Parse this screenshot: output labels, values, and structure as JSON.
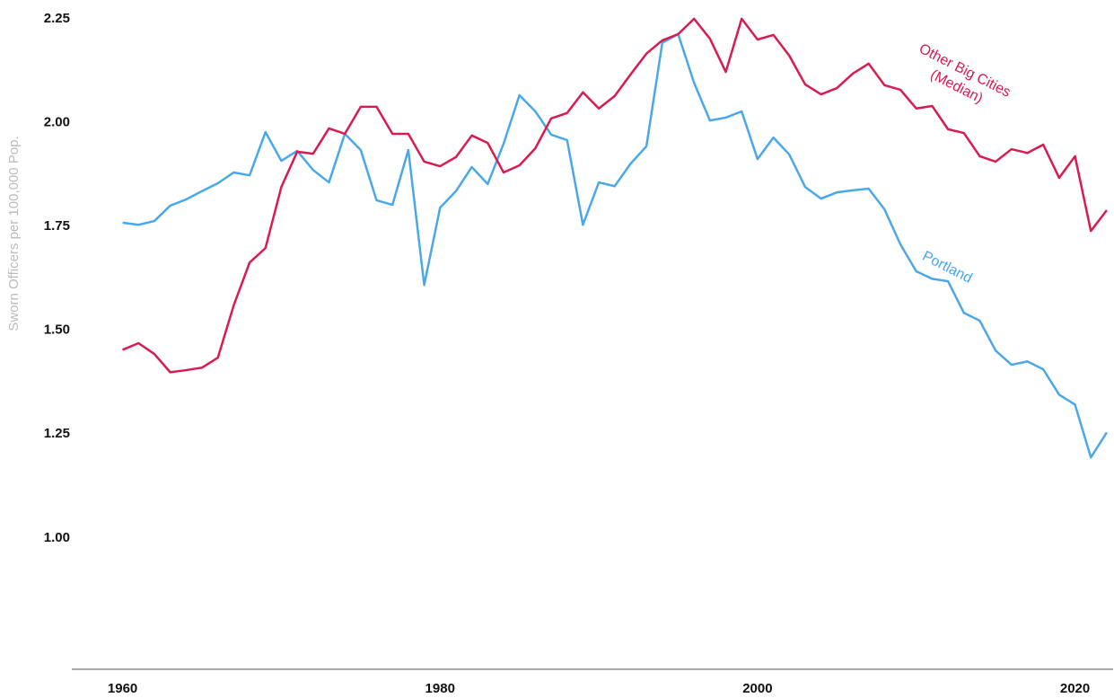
{
  "chart_data": {
    "type": "line",
    "y_label": "Sworn Officers per 100,000 Pop.",
    "x": [
      1960,
      1961,
      1962,
      1963,
      1964,
      1965,
      1966,
      1967,
      1968,
      1969,
      1970,
      1971,
      1972,
      1973,
      1974,
      1975,
      1976,
      1977,
      1978,
      1979,
      1980,
      1981,
      1982,
      1983,
      1984,
      1985,
      1986,
      1987,
      1988,
      1989,
      1990,
      1991,
      1992,
      1993,
      1994,
      1995,
      1996,
      1997,
      1998,
      1999,
      2000,
      2001,
      2002,
      2003,
      2004,
      2005,
      2006,
      2007,
      2008,
      2009,
      2010,
      2011,
      2012,
      2013,
      2014,
      2015,
      2016,
      2017,
      2018,
      2019,
      2020,
      2021,
      2022
    ],
    "series": [
      {
        "name": "Portland",
        "color": "#4aa8e8",
        "values": [
          1.759,
          1.754,
          1.763,
          1.8,
          1.815,
          1.835,
          1.854,
          1.88,
          1.873,
          1.977,
          1.908,
          1.932,
          1.886,
          1.856,
          1.973,
          1.934,
          1.813,
          1.802,
          1.934,
          1.609,
          1.795,
          1.835,
          1.893,
          1.852,
          1.949,
          2.066,
          2.027,
          1.971,
          1.958,
          1.754,
          1.856,
          1.847,
          1.901,
          1.943,
          2.192,
          2.213,
          2.096,
          2.005,
          2.012,
          2.027,
          1.912,
          1.964,
          1.923,
          1.845,
          1.817,
          1.832,
          1.837,
          1.841,
          1.791,
          1.707,
          1.642,
          1.624,
          1.618,
          1.542,
          1.523,
          1.451,
          1.417,
          1.425,
          1.406,
          1.345,
          1.321,
          1.194,
          1.254
        ]
      },
      {
        "name": "Other Big Cities (Median)",
        "color": "#d81b50",
        "values": [
          1.453,
          1.469,
          1.443,
          1.399,
          1.404,
          1.41,
          1.434,
          1.56,
          1.663,
          1.698,
          1.845,
          1.93,
          1.925,
          1.986,
          1.973,
          2.038,
          2.038,
          1.973,
          1.973,
          1.906,
          1.895,
          1.917,
          1.969,
          1.951,
          1.88,
          1.897,
          1.938,
          2.01,
          2.023,
          2.073,
          2.034,
          2.064,
          2.116,
          2.166,
          2.198,
          2.213,
          2.25,
          2.202,
          2.122,
          2.25,
          2.2,
          2.211,
          2.161,
          2.092,
          2.068,
          2.083,
          2.118,
          2.142,
          2.09,
          2.079,
          2.034,
          2.04,
          1.984,
          1.975,
          1.919,
          1.906,
          1.936,
          1.927,
          1.947,
          1.867,
          1.919,
          1.739,
          1.789
        ]
      }
    ],
    "annotations": [
      [
        "Portland"
      ],
      [
        "Other Big Cities",
        "(Median)"
      ]
    ],
    "xlim": [
      1956.8,
      2022.4
    ],
    "xticks": [
      1960,
      1980,
      2000,
      2020
    ],
    "ylim": [
      0.684,
      2.28
    ],
    "yticks": [
      {
        "value": 1,
        "label": "1.00"
      },
      1.25,
      {
        "value": 1.5,
        "label": "1.50"
      },
      1.75,
      {
        "value": 2,
        "label": "2.00"
      },
      2.25
    ],
    "grid": false
  }
}
